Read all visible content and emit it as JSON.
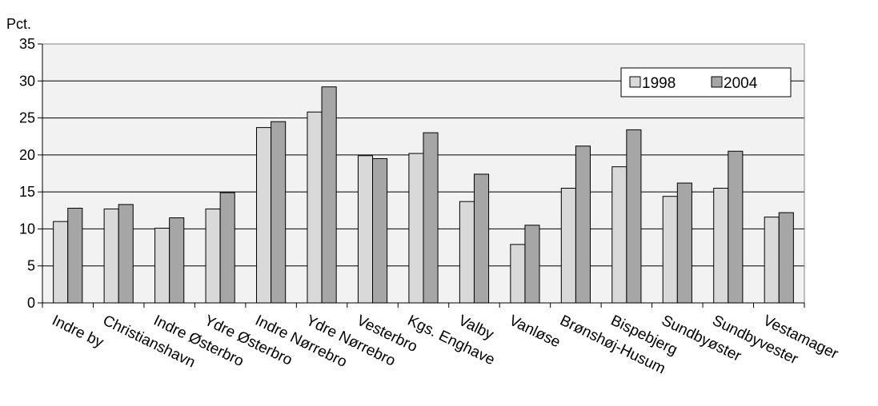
{
  "chart_data": {
    "type": "bar",
    "title": "",
    "ylabel": "Pct.",
    "xlabel": "",
    "ylim": [
      0,
      35
    ],
    "yticks": [
      0,
      5,
      10,
      15,
      20,
      25,
      30,
      35
    ],
    "grid": true,
    "legend_position": "top-right",
    "categories": [
      "Indre by",
      "Christianshavn",
      "Indre Østerbro",
      "Ydre Østerbro",
      "Indre Nørrebro",
      "Ydre Nørrebro",
      "Vesterbro",
      "Kgs. Enghave",
      "Valby",
      "Vanløse",
      "Brønshøj-Husum",
      "Bispebjerg",
      "Sundbyøster",
      "Sundbyvester",
      "Vestamager"
    ],
    "series": [
      {
        "name": "1998",
        "color": "#d9d9d9",
        "values": [
          11.0,
          12.7,
          10.1,
          12.7,
          23.7,
          25.8,
          19.9,
          20.2,
          13.7,
          7.9,
          15.5,
          18.4,
          14.4,
          15.5,
          11.6
        ]
      },
      {
        "name": "2004",
        "color": "#a6a6a6",
        "values": [
          12.8,
          13.3,
          11.5,
          14.9,
          24.5,
          29.2,
          19.5,
          23.0,
          17.4,
          10.5,
          21.2,
          23.4,
          16.2,
          20.5,
          12.2
        ]
      }
    ],
    "plot_background": "#f2f2f2"
  }
}
